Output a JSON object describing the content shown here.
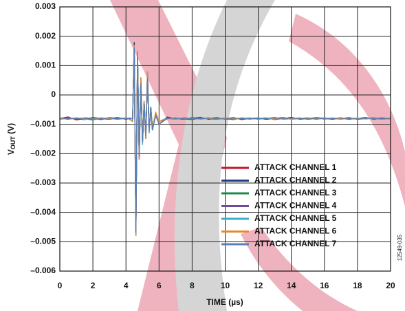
{
  "chart_data": {
    "type": "line",
    "ylabel": [
      "V",
      "OUT",
      " (V)"
    ],
    "xlabel": "TIME (µs)",
    "figure_id": "12549-035",
    "xlim": [
      0,
      20
    ],
    "xticks": [
      0,
      2,
      4,
      6,
      8,
      10,
      12,
      14,
      16,
      18,
      20
    ],
    "ylim": [
      -0.006,
      0.003
    ],
    "yticks": [
      {
        "value": -0.006,
        "label": "–0.006"
      },
      {
        "value": -0.005,
        "label": "–0.005"
      },
      {
        "value": -0.004,
        "label": "–0.004"
      },
      {
        "value": -0.003,
        "label": "–0.003"
      },
      {
        "value": -0.002,
        "label": "–0.002"
      },
      {
        "value": -0.001,
        "label": "–0.001"
      },
      0,
      {
        "value": 0.001,
        "label": "0.001"
      },
      {
        "value": 0.002,
        "label": "0.002"
      },
      {
        "value": 0.003,
        "label": "0.003"
      }
    ],
    "grid": true,
    "legend": "lower right",
    "x": [
      0,
      0.5,
      1,
      1.5,
      2,
      2.5,
      3,
      3.5,
      4,
      4.2,
      4.4,
      4.5,
      4.6,
      4.7,
      4.8,
      4.9,
      5,
      5.1,
      5.2,
      5.3,
      5.4,
      5.5,
      5.6,
      5.8,
      6,
      6.5,
      7,
      7.5,
      8,
      8.5,
      9,
      9.5,
      10,
      10.5,
      11,
      11.5,
      12,
      12.5,
      13,
      13.5,
      14,
      14.5,
      15,
      15.5,
      16,
      16.5,
      17,
      17.5,
      18,
      18.5,
      19,
      19.5,
      20
    ],
    "series": [
      {
        "name": "ATTACK CHANNEL 1",
        "color": "#c0172b",
        "values": [
          -0.0008,
          -0.00075,
          -0.00085,
          -0.0008,
          -0.00078,
          -0.00082,
          -0.0008,
          -0.00077,
          -0.00083,
          -0.0008,
          -0.0009,
          0.0016,
          -0.0046,
          0.0014,
          -0.0022,
          0.0005,
          -0.0017,
          -0.0002,
          -0.0015,
          0.0008,
          -0.0013,
          -0.0004,
          -0.0012,
          -0.0006,
          -0.001,
          -0.00075,
          -0.00082,
          -0.00078,
          -0.0008,
          -0.00076,
          -0.00083,
          -0.00079,
          -0.00081,
          -0.00077,
          -0.00084,
          -0.0008,
          -0.00078,
          -0.00082,
          -0.00079,
          -0.00081,
          -0.00076,
          -0.00083,
          -0.0008,
          -0.00078,
          -0.00082,
          -0.00079,
          -0.00081,
          -0.00077,
          -0.00083,
          -0.0008,
          -0.00078,
          -0.00082,
          -0.0008
        ]
      },
      {
        "name": "ATTACK CHANNEL 2",
        "color": "#1f3b82",
        "values": [
          -0.00082,
          -0.00078,
          -0.00081,
          -0.00084,
          -0.00077,
          -0.0008,
          -0.00083,
          -0.00079,
          -0.0008,
          -0.00082,
          -0.0009,
          0.0018,
          -0.0048,
          0.0015,
          -0.0021,
          0.0006,
          -0.0016,
          -0.0003,
          -0.0014,
          0.0007,
          -0.0012,
          -0.0005,
          -0.0011,
          -0.0007,
          -0.0009,
          -0.00079,
          -0.0008,
          -0.00083,
          -0.00077,
          -0.00081,
          -0.00078,
          -0.00082,
          -0.0008,
          -0.00084,
          -0.00078,
          -0.00081,
          -0.00079,
          -0.00083,
          -0.0008,
          -0.00077,
          -0.00082,
          -0.0008,
          -0.00078,
          -0.00083,
          -0.00079,
          -0.00081,
          -0.00078,
          -0.00082,
          -0.0008,
          -0.00077,
          -0.00083,
          -0.00079,
          -0.00081
        ]
      },
      {
        "name": "ATTACK CHANNEL 3",
        "color": "#1e8a4a",
        "values": [
          -0.00079,
          -0.00083,
          -0.00078,
          -0.00081,
          -0.00085,
          -0.00078,
          -0.00081,
          -0.00082,
          -0.00078,
          -0.0008,
          -0.0008,
          0.0017,
          -0.0047,
          0.0013,
          -0.002,
          0.0004,
          -0.0016,
          -0.0002,
          -0.0014,
          0.0006,
          -0.0012,
          -0.0004,
          -0.0011,
          -0.0007,
          -0.0009,
          -0.00081,
          -0.00078,
          -0.00082,
          -0.00084,
          -0.00079,
          -0.0008,
          -0.00077,
          -0.00083,
          -0.00081,
          -0.00079,
          -0.00082,
          -0.0008,
          -0.00078,
          -0.00084,
          -0.0008,
          -0.00079,
          -0.00082,
          -0.00081,
          -0.00077,
          -0.0008,
          -0.00083,
          -0.00079,
          -0.0008,
          -0.00081,
          -0.00078,
          -0.00082,
          -0.0008,
          -0.00079
        ]
      },
      {
        "name": "ATTACK CHANNEL 4",
        "color": "#6b4c9a",
        "values": [
          -0.00081,
          -0.00079,
          -0.00082,
          -0.00078,
          -0.0008,
          -0.00084,
          -0.00077,
          -0.00081,
          -0.0008,
          -0.00079,
          -0.0009,
          0.0016,
          -0.0047,
          0.0014,
          -0.0021,
          0.0005,
          -0.0016,
          -0.0003,
          -0.0015,
          0.0007,
          -0.0012,
          -0.0005,
          -0.0012,
          -0.0006,
          -0.001,
          -0.00078,
          -0.00081,
          -0.0008,
          -0.00082,
          -0.00078,
          -0.00081,
          -0.00083,
          -0.00078,
          -0.0008,
          -0.00082,
          -0.00079,
          -0.00081,
          -0.0008,
          -0.00077,
          -0.00082,
          -0.00081,
          -0.00079,
          -0.00083,
          -0.0008,
          -0.00078,
          -0.00081,
          -0.0008,
          -0.00083,
          -0.00079,
          -0.00081,
          -0.0008,
          -0.00078,
          -0.00082
        ]
      },
      {
        "name": "ATTACK CHANNEL 5",
        "color": "#3aaecb",
        "values": [
          -0.0008,
          -0.00082,
          -0.00079,
          -0.00083,
          -0.0008,
          -0.00078,
          -0.00082,
          -0.0008,
          -0.00081,
          -0.00078,
          -0.0008,
          0.0017,
          -0.0046,
          0.0014,
          -0.002,
          0.0005,
          -0.0017,
          -0.0002,
          -0.0014,
          0.0007,
          -0.0013,
          -0.0004,
          -0.0011,
          -0.0007,
          -0.0009,
          -0.0008,
          -0.00083,
          -0.00079,
          -0.00081,
          -0.0008,
          -0.00078,
          -0.00082,
          -0.00079,
          -0.00081,
          -0.0008,
          -0.00083,
          -0.00078,
          -0.00081,
          -0.00082,
          -0.00079,
          -0.0008,
          -0.00078,
          -0.00082,
          -0.00081,
          -0.00079,
          -0.0008,
          -0.00083,
          -0.00078,
          -0.00081,
          -0.00079,
          -0.00081,
          -0.00083,
          -0.0008
        ]
      },
      {
        "name": "ATTACK CHANNEL 6",
        "color": "#e6892e",
        "values": [
          -0.00083,
          -0.0008,
          -0.00078,
          -0.00081,
          -0.00082,
          -0.00079,
          -0.0008,
          -0.00083,
          -0.00079,
          -0.00081,
          -0.0009,
          0.0017,
          -0.0048,
          0.0015,
          -0.0022,
          0.0006,
          -0.0016,
          -0.0002,
          -0.0015,
          0.0008,
          -0.0012,
          -0.0005,
          -0.0011,
          -0.0006,
          -0.0009,
          -0.00082,
          -0.00079,
          -0.00081,
          -0.00078,
          -0.00083,
          -0.0008,
          -0.00081,
          -0.00078,
          -0.00082,
          -0.0008,
          -0.00078,
          -0.00083,
          -0.00079,
          -0.00081,
          -0.00078,
          -0.00083,
          -0.00081,
          -0.00079,
          -0.00082,
          -0.0008,
          -0.00078,
          -0.00082,
          -0.00081,
          -0.00078,
          -0.00082,
          -0.00079,
          -0.00081,
          -0.00078
        ]
      },
      {
        "name": "ATTACK CHANNEL 7",
        "color": "#5a7fb5",
        "values": [
          -0.00078,
          -0.00081,
          -0.0008,
          -0.00079,
          -0.00083,
          -0.00081,
          -0.00078,
          -0.00082,
          -0.0008,
          -0.00081,
          -0.0008,
          0.0016,
          -0.0047,
          0.0013,
          -0.0021,
          0.0004,
          -0.0016,
          -0.0003,
          -0.0014,
          0.0006,
          -0.0012,
          -0.0004,
          -0.0012,
          -0.0007,
          -0.001,
          -0.0008,
          -0.00079,
          -0.00082,
          -0.0008,
          -0.00081,
          -0.00079,
          -0.0008,
          -0.00082,
          -0.00078,
          -0.00081,
          -0.00079,
          -0.00082,
          -0.0008,
          -0.00078,
          -0.00081,
          -0.00079,
          -0.0008,
          -0.00082,
          -0.00079,
          -0.00081,
          -0.0008,
          -0.00078,
          -0.00081,
          -0.00082,
          -0.0008,
          -0.00079,
          -0.00081,
          -0.0008
        ]
      }
    ]
  }
}
